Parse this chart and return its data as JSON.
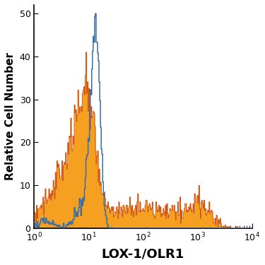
{
  "title": "",
  "xlabel": "LOX-1/OLR1",
  "ylabel": "Relative Cell Number",
  "xlim": [
    1,
    10000
  ],
  "ylim": [
    0,
    52
  ],
  "yticks": [
    0,
    10,
    20,
    30,
    40,
    50
  ],
  "blue_color": "#3a6ea5",
  "orange_fill_color": "#f5a020",
  "orange_edge_color": "#cc4400",
  "bg_color": "#ffffff",
  "xlabel_fontsize": 13,
  "ylabel_fontsize": 11
}
